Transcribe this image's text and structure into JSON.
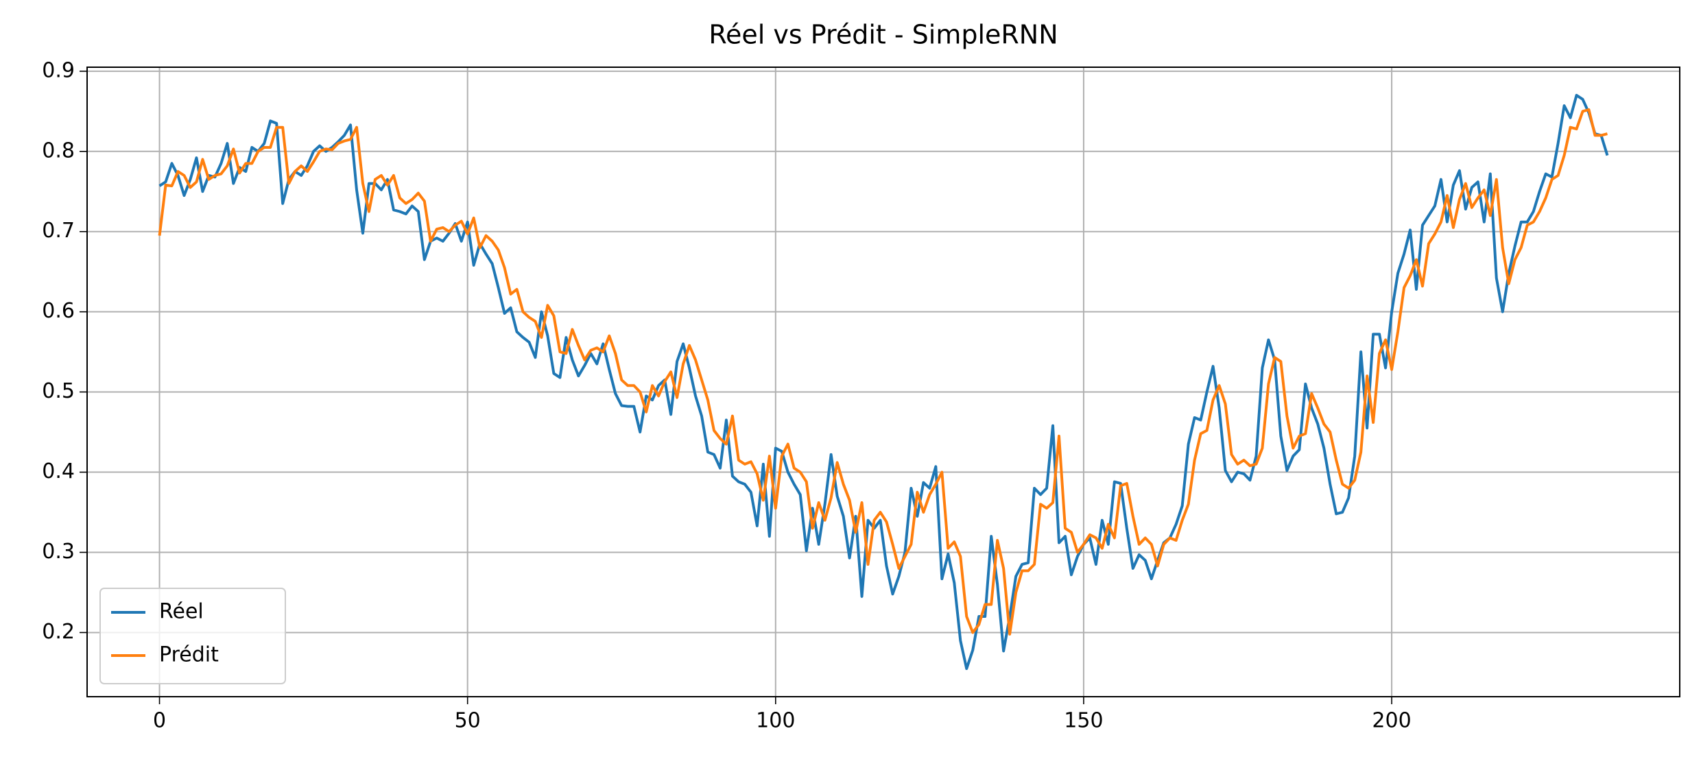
{
  "chart_data": {
    "type": "line",
    "title": "Réel vs Prédit - SimpleRNN",
    "x": [
      0,
      1,
      2,
      3,
      4,
      5,
      6,
      7,
      8,
      9,
      10,
      11,
      12,
      13,
      14,
      15,
      16,
      17,
      18,
      19,
      20,
      21,
      22,
      23,
      24,
      25,
      26,
      27,
      28,
      29,
      30,
      31,
      32,
      33,
      34,
      35,
      36,
      37,
      38,
      39,
      40,
      41,
      42,
      43,
      44,
      45,
      46,
      47,
      48,
      49,
      50,
      51,
      52,
      53,
      54,
      55,
      56,
      57,
      58,
      59,
      60,
      61,
      62,
      63,
      64,
      65,
      66,
      67,
      68,
      69,
      70,
      71,
      72,
      73,
      74,
      75,
      76,
      77,
      78,
      79,
      80,
      81,
      82,
      83,
      84,
      85,
      86,
      87,
      88,
      89,
      90,
      91,
      92,
      93,
      94,
      95,
      96,
      97,
      98,
      99,
      100,
      101,
      102,
      103,
      104,
      105,
      106,
      107,
      108,
      109,
      110,
      111,
      112,
      113,
      114,
      115,
      116,
      117,
      118,
      119,
      120,
      121,
      122,
      123,
      124,
      125,
      126,
      127,
      128,
      129,
      130,
      131,
      132,
      133,
      134,
      135,
      136,
      137,
      138,
      139,
      140,
      141,
      142,
      143,
      144,
      145,
      146,
      147,
      148,
      149,
      150,
      151,
      152,
      153,
      154,
      155,
      156,
      157,
      158,
      159,
      160,
      161,
      162,
      163,
      164,
      165,
      166,
      167,
      168,
      169,
      170,
      171,
      172,
      173,
      174,
      175,
      176,
      177,
      178,
      179,
      180,
      181,
      182,
      183,
      184,
      185,
      186,
      187,
      188,
      189,
      190,
      191,
      192,
      193,
      194,
      195,
      196,
      197,
      198,
      199,
      200,
      201,
      202,
      203,
      204,
      205,
      206,
      207,
      208,
      209,
      210,
      211,
      212,
      213,
      214,
      215,
      216,
      217,
      218,
      219,
      220,
      221,
      222,
      223,
      224,
      225,
      226,
      227,
      228,
      229,
      230,
      231,
      232,
      233,
      234,
      235
    ],
    "series": [
      {
        "name": "Réel",
        "color": "#1f77b4",
        "values": [
          0.757,
          0.762,
          0.785,
          0.77,
          0.745,
          0.765,
          0.792,
          0.75,
          0.77,
          0.768,
          0.785,
          0.81,
          0.76,
          0.78,
          0.775,
          0.805,
          0.8,
          0.81,
          0.838,
          0.835,
          0.735,
          0.765,
          0.775,
          0.77,
          0.782,
          0.8,
          0.807,
          0.8,
          0.805,
          0.812,
          0.82,
          0.833,
          0.752,
          0.698,
          0.76,
          0.76,
          0.752,
          0.765,
          0.727,
          0.725,
          0.722,
          0.732,
          0.725,
          0.665,
          0.688,
          0.692,
          0.688,
          0.698,
          0.71,
          0.688,
          0.712,
          0.658,
          0.685,
          0.672,
          0.66,
          0.63,
          0.598,
          0.605,
          0.575,
          0.568,
          0.562,
          0.543,
          0.6,
          0.57,
          0.523,
          0.518,
          0.568,
          0.54,
          0.52,
          0.533,
          0.548,
          0.535,
          0.56,
          0.528,
          0.498,
          0.483,
          0.482,
          0.482,
          0.45,
          0.495,
          0.49,
          0.508,
          0.515,
          0.472,
          0.538,
          0.56,
          0.53,
          0.495,
          0.47,
          0.425,
          0.422,
          0.405,
          0.465,
          0.395,
          0.388,
          0.385,
          0.375,
          0.333,
          0.41,
          0.32,
          0.43,
          0.426,
          0.4,
          0.385,
          0.372,
          0.302,
          0.355,
          0.31,
          0.36,
          0.422,
          0.37,
          0.345,
          0.293,
          0.345,
          0.245,
          0.34,
          0.33,
          0.34,
          0.283,
          0.248,
          0.27,
          0.3,
          0.38,
          0.345,
          0.387,
          0.38,
          0.407,
          0.267,
          0.298,
          0.262,
          0.19,
          0.155,
          0.178,
          0.22,
          0.22,
          0.32,
          0.26,
          0.177,
          0.22,
          0.27,
          0.285,
          0.287,
          0.38,
          0.372,
          0.38,
          0.458,
          0.312,
          0.32,
          0.272,
          0.295,
          0.31,
          0.318,
          0.285,
          0.34,
          0.31,
          0.388,
          0.386,
          0.33,
          0.28,
          0.297,
          0.29,
          0.267,
          0.29,
          0.312,
          0.318,
          0.335,
          0.358,
          0.435,
          0.468,
          0.465,
          0.5,
          0.532,
          0.48,
          0.402,
          0.388,
          0.4,
          0.398,
          0.39,
          0.42,
          0.53,
          0.565,
          0.54,
          0.445,
          0.402,
          0.42,
          0.428,
          0.51,
          0.48,
          0.46,
          0.43,
          0.385,
          0.348,
          0.35,
          0.368,
          0.42,
          0.55,
          0.455,
          0.572,
          0.572,
          0.53,
          0.6,
          0.648,
          0.672,
          0.702,
          0.628,
          0.708,
          0.72,
          0.732,
          0.765,
          0.712,
          0.758,
          0.776,
          0.728,
          0.755,
          0.762,
          0.712,
          0.772,
          0.642,
          0.6,
          0.648,
          0.682,
          0.712,
          0.712,
          0.725,
          0.75,
          0.772,
          0.768,
          0.81,
          0.857,
          0.842,
          0.87,
          0.865,
          0.848,
          0.822,
          0.82,
          0.795
        ]
      },
      {
        "name": "Prédit",
        "color": "#ff7f0e",
        "values": [
          0.695,
          0.758,
          0.757,
          0.775,
          0.77,
          0.755,
          0.762,
          0.79,
          0.765,
          0.77,
          0.772,
          0.782,
          0.803,
          0.773,
          0.785,
          0.785,
          0.8,
          0.805,
          0.805,
          0.83,
          0.83,
          0.76,
          0.775,
          0.782,
          0.775,
          0.787,
          0.8,
          0.803,
          0.802,
          0.81,
          0.813,
          0.815,
          0.83,
          0.76,
          0.725,
          0.765,
          0.77,
          0.758,
          0.77,
          0.742,
          0.735,
          0.74,
          0.748,
          0.738,
          0.688,
          0.703,
          0.705,
          0.7,
          0.708,
          0.713,
          0.697,
          0.717,
          0.68,
          0.695,
          0.688,
          0.677,
          0.655,
          0.622,
          0.628,
          0.6,
          0.593,
          0.588,
          0.568,
          0.608,
          0.595,
          0.55,
          0.548,
          0.578,
          0.558,
          0.54,
          0.552,
          0.555,
          0.55,
          0.57,
          0.548,
          0.515,
          0.508,
          0.508,
          0.5,
          0.475,
          0.508,
          0.495,
          0.513,
          0.525,
          0.493,
          0.535,
          0.558,
          0.54,
          0.515,
          0.49,
          0.452,
          0.442,
          0.435,
          0.47,
          0.415,
          0.41,
          0.413,
          0.398,
          0.365,
          0.42,
          0.355,
          0.42,
          0.435,
          0.405,
          0.4,
          0.388,
          0.33,
          0.362,
          0.34,
          0.368,
          0.412,
          0.385,
          0.365,
          0.325,
          0.362,
          0.285,
          0.34,
          0.35,
          0.338,
          0.31,
          0.28,
          0.295,
          0.31,
          0.375,
          0.35,
          0.372,
          0.385,
          0.4,
          0.305,
          0.313,
          0.295,
          0.22,
          0.2,
          0.21,
          0.235,
          0.235,
          0.315,
          0.28,
          0.198,
          0.25,
          0.277,
          0.277,
          0.285,
          0.36,
          0.355,
          0.362,
          0.445,
          0.33,
          0.325,
          0.3,
          0.31,
          0.322,
          0.318,
          0.305,
          0.335,
          0.318,
          0.383,
          0.386,
          0.345,
          0.31,
          0.318,
          0.31,
          0.283,
          0.31,
          0.318,
          0.315,
          0.34,
          0.36,
          0.415,
          0.448,
          0.452,
          0.49,
          0.508,
          0.485,
          0.422,
          0.41,
          0.415,
          0.408,
          0.41,
          0.43,
          0.51,
          0.543,
          0.538,
          0.47,
          0.43,
          0.445,
          0.448,
          0.498,
          0.48,
          0.46,
          0.45,
          0.415,
          0.385,
          0.38,
          0.39,
          0.425,
          0.52,
          0.462,
          0.548,
          0.565,
          0.528,
          0.575,
          0.63,
          0.645,
          0.665,
          0.632,
          0.685,
          0.697,
          0.712,
          0.745,
          0.705,
          0.74,
          0.76,
          0.73,
          0.742,
          0.752,
          0.72,
          0.765,
          0.68,
          0.635,
          0.665,
          0.68,
          0.708,
          0.712,
          0.725,
          0.742,
          0.765,
          0.77,
          0.795,
          0.83,
          0.828,
          0.85,
          0.852,
          0.82,
          0.82,
          0.822
        ]
      }
    ],
    "xlim": [
      -11.75,
      246.75
    ],
    "xticks": [
      0,
      50,
      100,
      150,
      200
    ],
    "ylim": [
      0.12,
      0.905
    ],
    "yticks": [
      0.2,
      0.3,
      0.4,
      0.5,
      0.6,
      0.7,
      0.8,
      0.9
    ],
    "grid": true,
    "legend": "lower left"
  }
}
